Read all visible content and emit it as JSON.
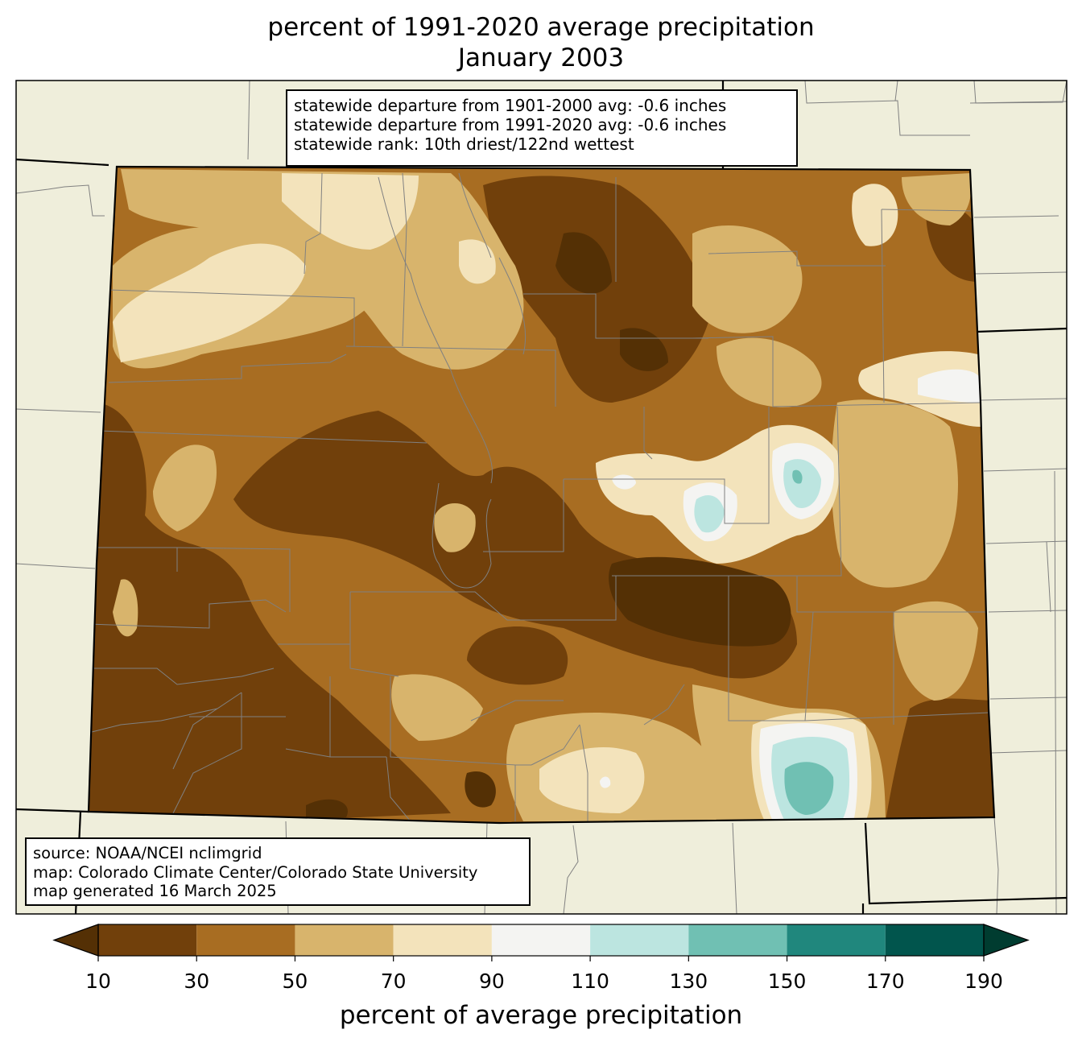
{
  "title": {
    "line1": "percent of 1991-2020 average precipitation",
    "line2": "January 2003"
  },
  "stats_box": [
    "statewide departure from 1901-2000 avg: -0.6 inches",
    "statewide departure from 1991-2020 avg: -0.6 inches",
    "statewide rank: 10th driest/122nd wettest"
  ],
  "source_box": [
    "source: NOAA/NCEI nclimgrid",
    "map: Colorado Climate Center/Colorado State University",
    "map generated 16 March 2025"
  ],
  "colorbar": {
    "label": "percent of average precipitation",
    "ticks": [
      "10",
      "30",
      "50",
      "70",
      "90",
      "110",
      "130",
      "150",
      "170",
      "190"
    ],
    "under_color": "#543005",
    "over_color": "#003c30",
    "bins": [
      {
        "from": 10,
        "to": 30,
        "color": "#71400b"
      },
      {
        "from": 30,
        "to": 50,
        "color": "#a86d22"
      },
      {
        "from": 50,
        "to": 70,
        "color": "#d8b46c"
      },
      {
        "from": 70,
        "to": 90,
        "color": "#f3e3bb"
      },
      {
        "from": 90,
        "to": 110,
        "color": "#f4f4f2"
      },
      {
        "from": 110,
        "to": 130,
        "color": "#bce5e0"
      },
      {
        "from": 130,
        "to": 150,
        "color": "#70c0b3"
      },
      {
        "from": 150,
        "to": 170,
        "color": "#20877d"
      },
      {
        "from": 170,
        "to": 190,
        "color": "#01554d"
      }
    ]
  },
  "map": {
    "land_color": "#efeedb",
    "state_outline": "#000000",
    "county_lines": "#808080"
  }
}
